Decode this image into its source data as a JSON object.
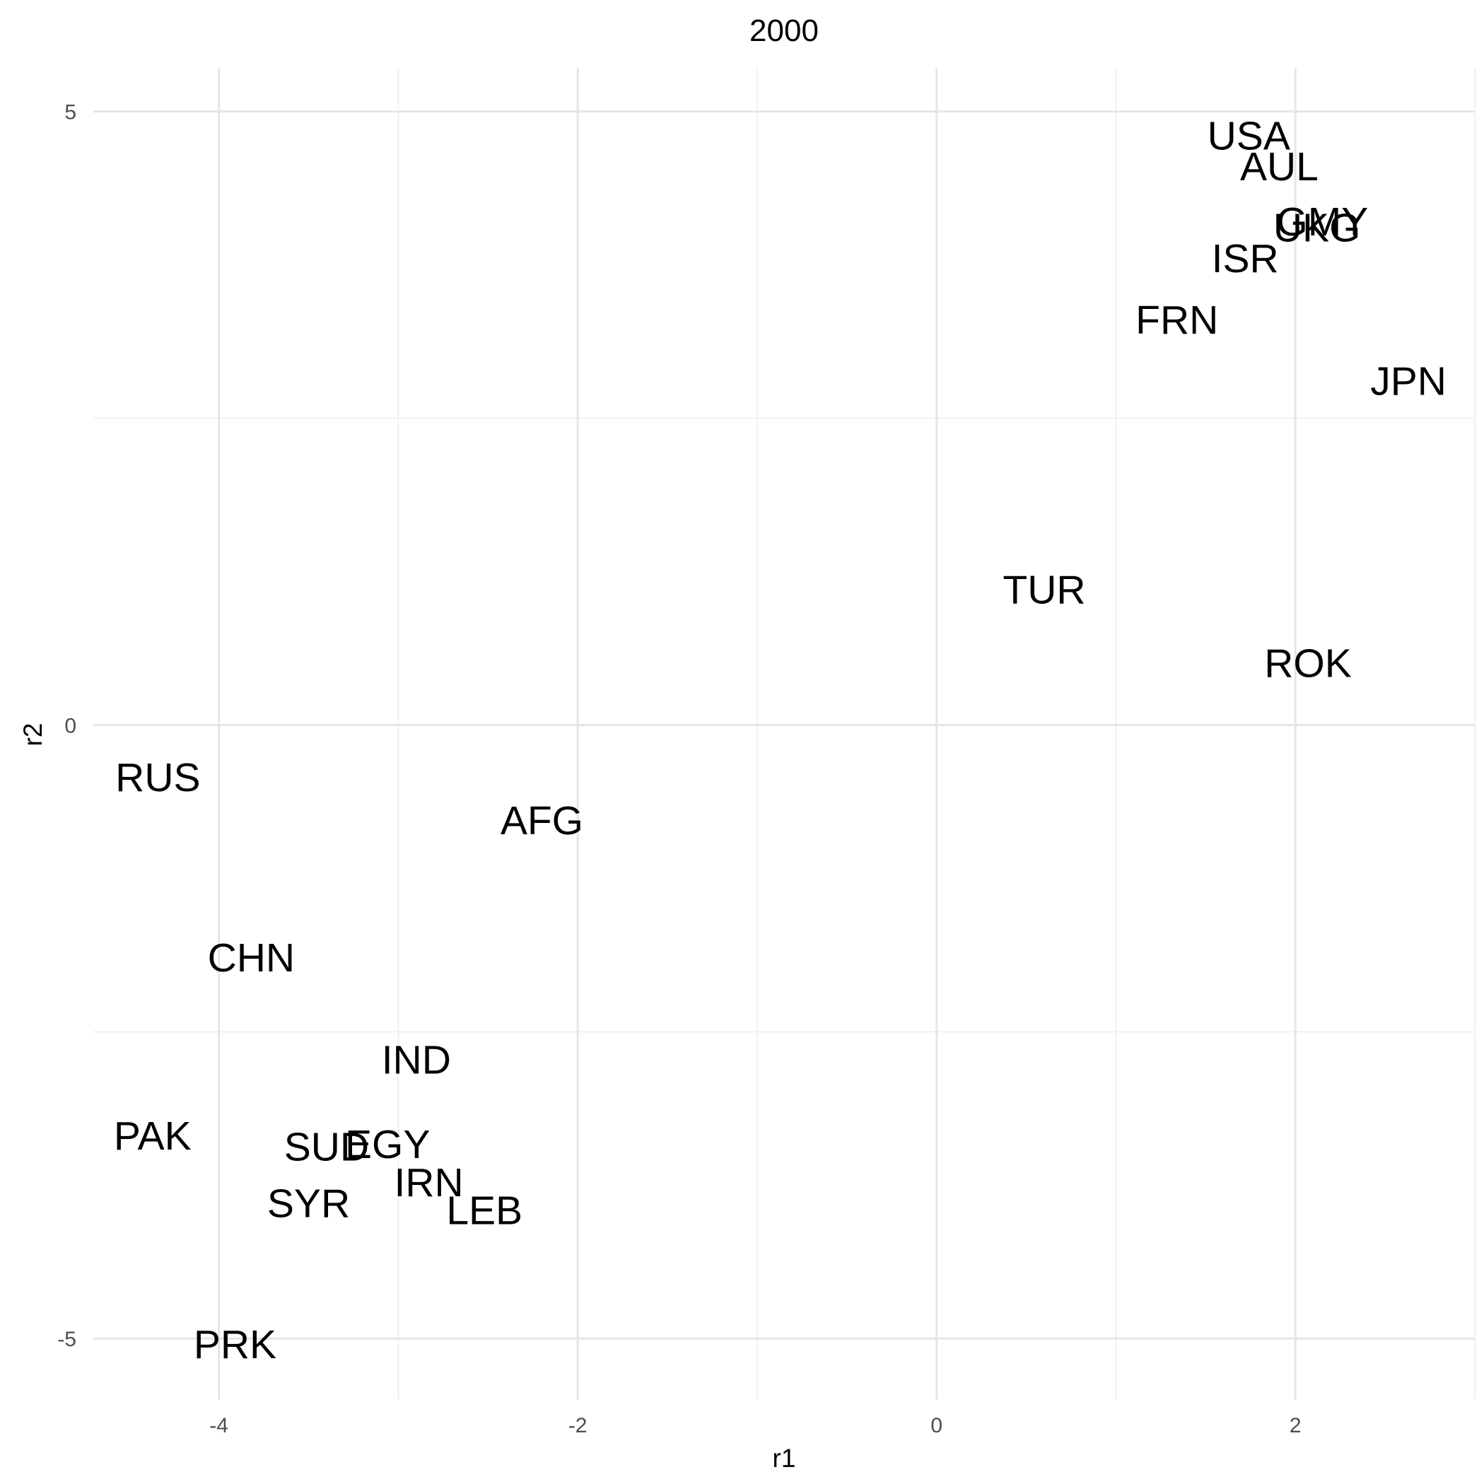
{
  "chart_data": {
    "type": "scatter",
    "title": "2000",
    "xlabel": "r1",
    "ylabel": "r2",
    "xlim": [
      -4.7,
      3.0
    ],
    "ylim": [
      -5.5,
      5.35
    ],
    "x_ticks": [
      -4,
      -2,
      0,
      2
    ],
    "y_ticks": [
      -5,
      0,
      5
    ],
    "x_tick_labels": [
      "-4",
      "-2",
      "0",
      "2"
    ],
    "y_tick_labels": [
      "-5",
      "0",
      "5"
    ],
    "grid": true,
    "legend": "none",
    "marker": "text",
    "points": [
      {
        "label": "USA",
        "x": 1.74,
        "y": 4.8
      },
      {
        "label": "AUL",
        "x": 1.91,
        "y": 4.55
      },
      {
        "label": "GMY",
        "x": 2.15,
        "y": 4.1
      },
      {
        "label": "UKG",
        "x": 2.12,
        "y": 4.05
      },
      {
        "label": "ISR",
        "x": 1.72,
        "y": 3.8
      },
      {
        "label": "FRN",
        "x": 1.34,
        "y": 3.3
      },
      {
        "label": "JPN",
        "x": 2.63,
        "y": 2.8
      },
      {
        "label": "TUR",
        "x": 0.6,
        "y": 1.1
      },
      {
        "label": "ROK",
        "x": 2.07,
        "y": 0.5
      },
      {
        "label": "RUS",
        "x": -4.34,
        "y": -0.43
      },
      {
        "label": "AFG",
        "x": -2.2,
        "y": -0.78
      },
      {
        "label": "CHN",
        "x": -3.82,
        "y": -1.9
      },
      {
        "label": "IND",
        "x": -2.9,
        "y": -2.73
      },
      {
        "label": "PAK",
        "x": -4.37,
        "y": -3.35
      },
      {
        "label": "SUD",
        "x": -3.4,
        "y": -3.44
      },
      {
        "label": "EGY",
        "x": -3.06,
        "y": -3.42
      },
      {
        "label": "IRN",
        "x": -2.83,
        "y": -3.73
      },
      {
        "label": "SYR",
        "x": -3.5,
        "y": -3.9
      },
      {
        "label": "LEB",
        "x": -2.52,
        "y": -3.96
      },
      {
        "label": "PRK",
        "x": -3.91,
        "y": -5.05
      }
    ]
  }
}
